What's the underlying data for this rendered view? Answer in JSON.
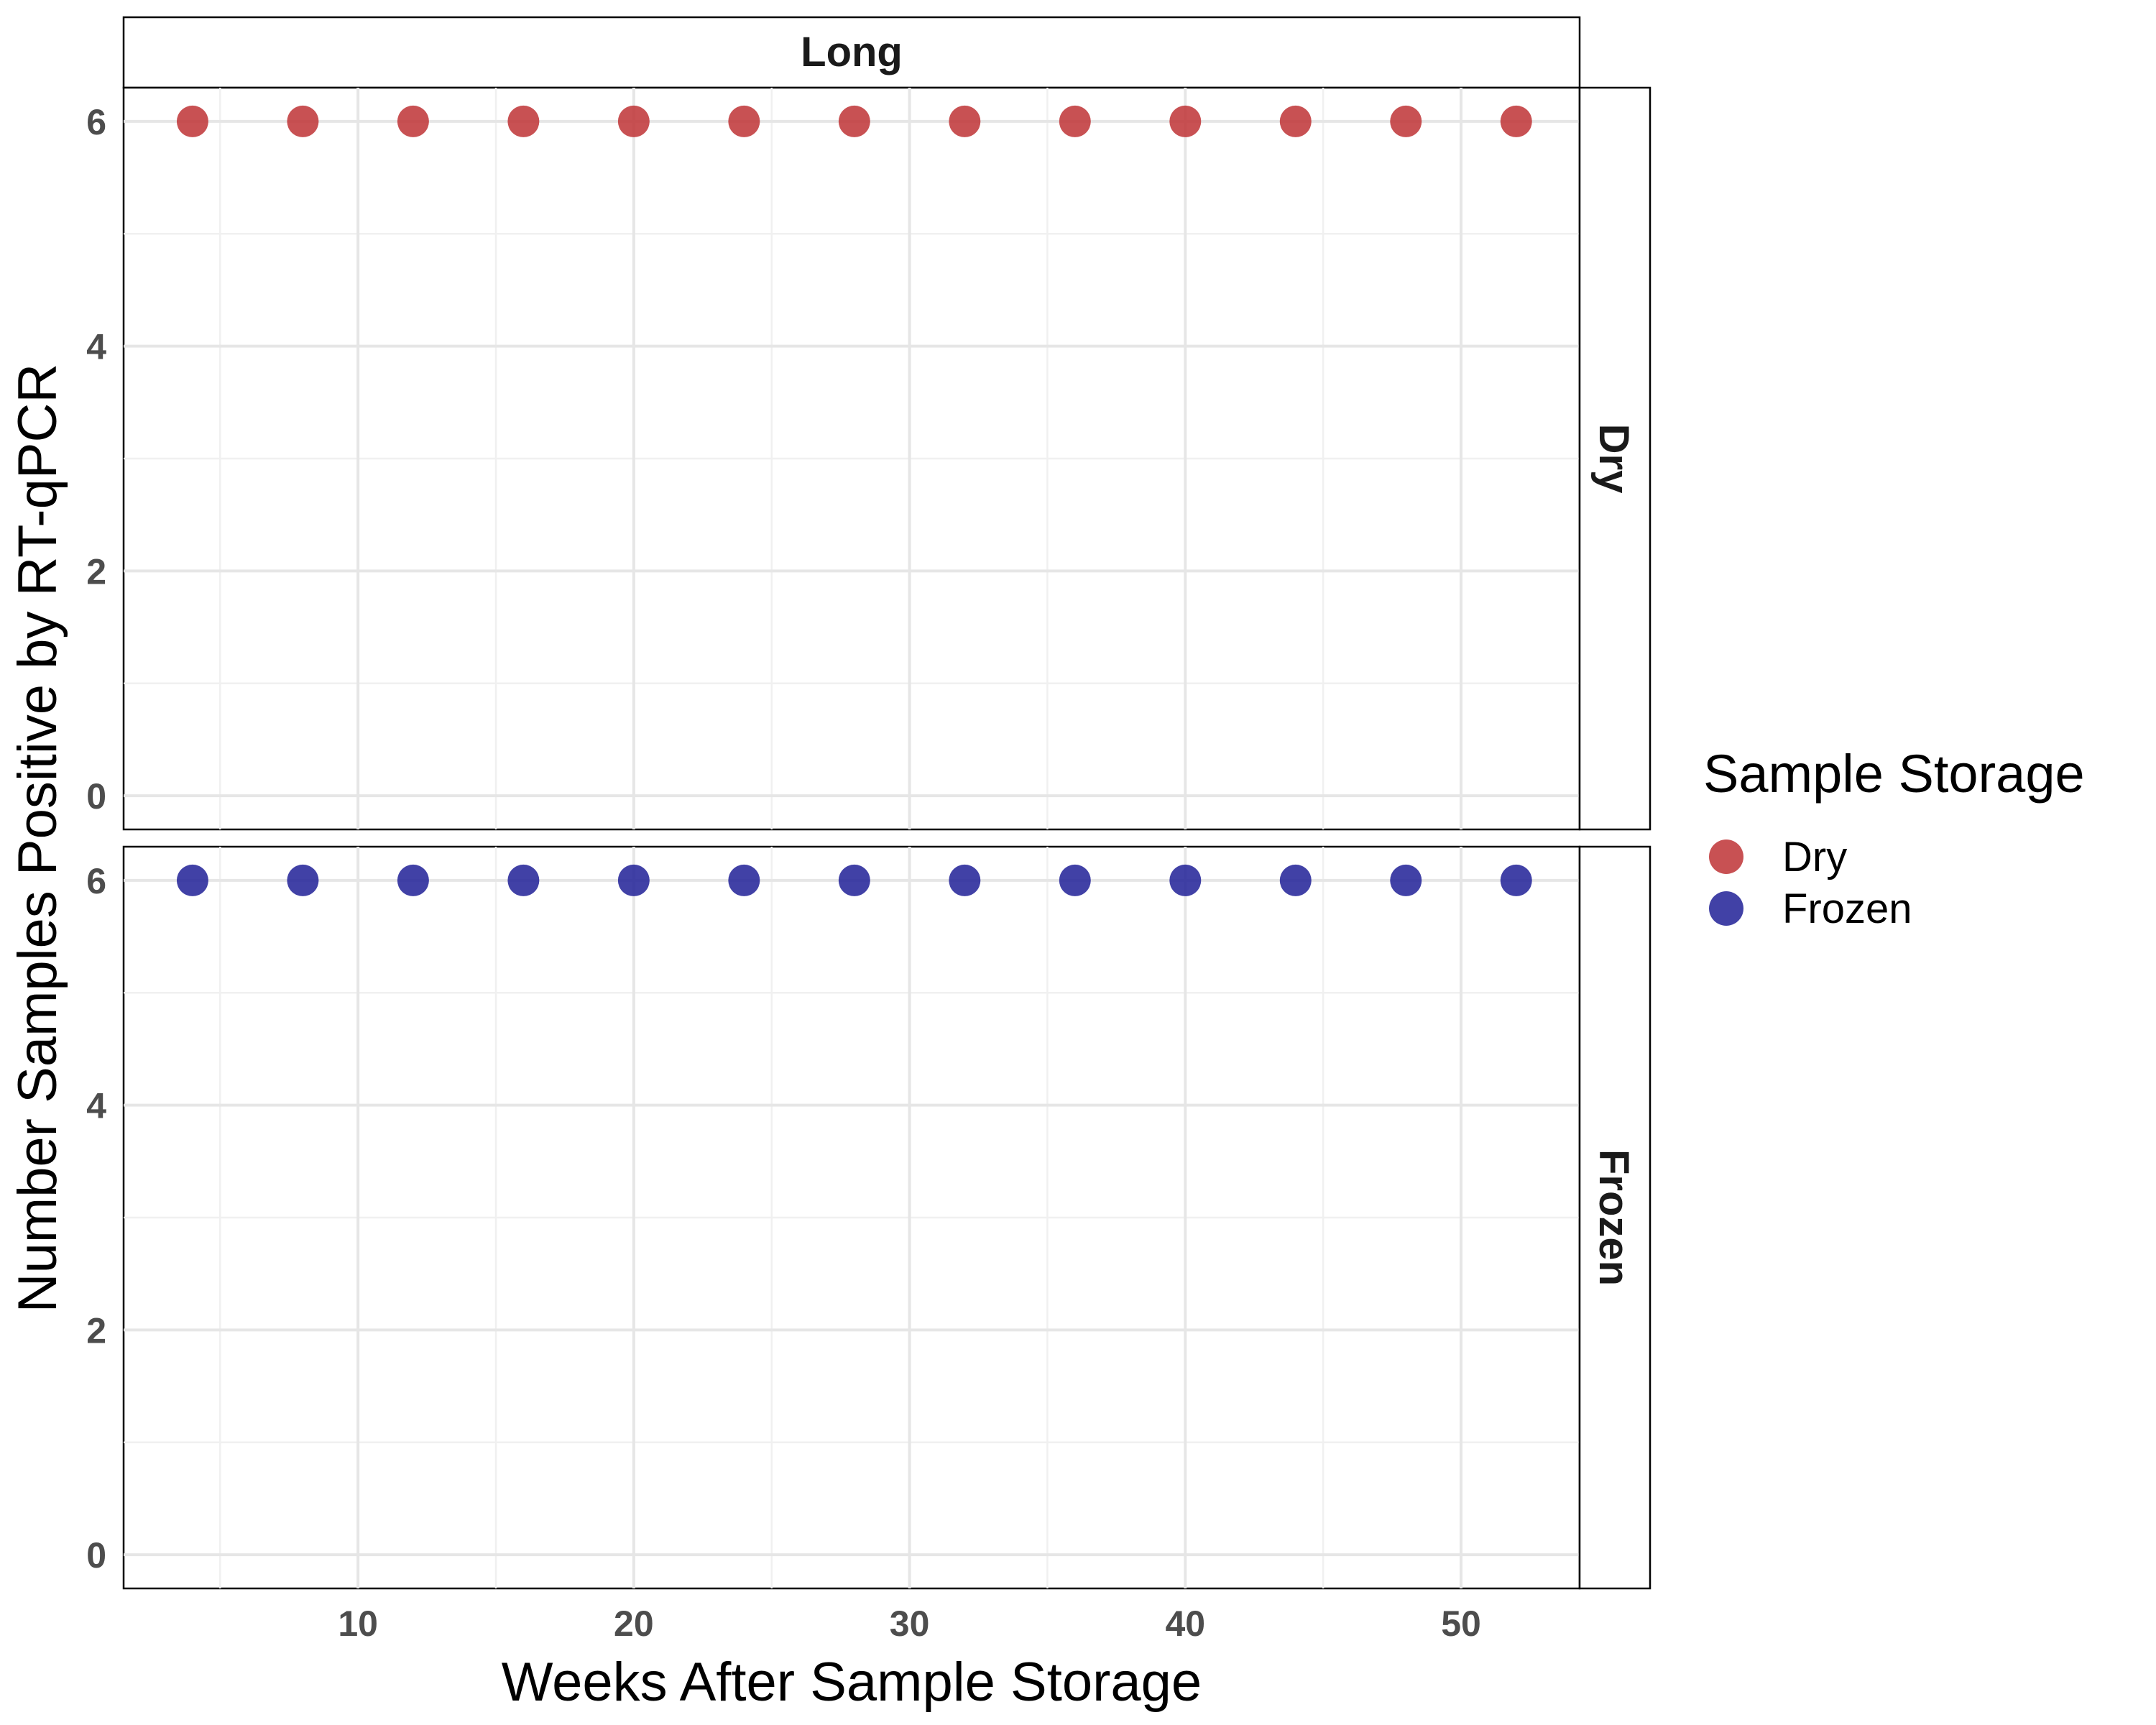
{
  "chart_data": {
    "type": "scatter",
    "facet_column": "Long",
    "facet_rows": [
      "Dry",
      "Frozen"
    ],
    "xlabel": "Weeks After Sample Storage",
    "ylabel": "Number Samples Positive by RT-qPCR",
    "xlim": [
      1.5,
      54.3
    ],
    "ylim": [
      -0.3,
      6.3
    ],
    "x_ticks": [
      10,
      20,
      30,
      40,
      50
    ],
    "y_ticks": [
      0,
      2,
      4,
      6
    ],
    "grid": true,
    "legend": {
      "title": "Sample Storage",
      "position": "right",
      "entries": [
        {
          "label": "Dry",
          "color": "#c0393b"
        },
        {
          "label": "Frozen",
          "color": "#27279a"
        }
      ]
    },
    "series": [
      {
        "name": "Dry",
        "facet": "Dry",
        "color": "#c0393b",
        "x": [
          4,
          8,
          12,
          16,
          20,
          24,
          28,
          32,
          36,
          40,
          44,
          48,
          52
        ],
        "y": [
          6,
          6,
          6,
          6,
          6,
          6,
          6,
          6,
          6,
          6,
          6,
          6,
          6
        ]
      },
      {
        "name": "Frozen",
        "facet": "Frozen",
        "color": "#27279a",
        "x": [
          4,
          8,
          12,
          16,
          20,
          24,
          28,
          32,
          36,
          40,
          44,
          48,
          52
        ],
        "y": [
          6,
          6,
          6,
          6,
          6,
          6,
          6,
          6,
          6,
          6,
          6,
          6,
          6
        ]
      }
    ]
  }
}
